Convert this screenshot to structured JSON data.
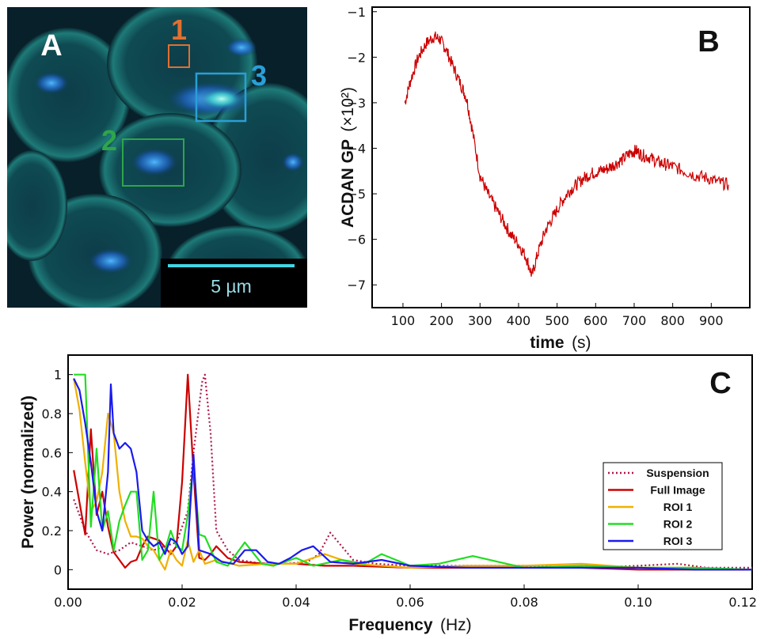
{
  "panels": {
    "A": {
      "letter": "A",
      "scale_bar_label": "5 µm",
      "roi_labels": [
        "1",
        "2",
        "3"
      ],
      "roi_colors": [
        "#e07030",
        "#2ea54a",
        "#2a9fd6"
      ]
    },
    "B": {
      "letter": "B"
    },
    "C": {
      "letter": "C"
    }
  },
  "chart_data": [
    {
      "type": "line",
      "panel": "B",
      "xlabel": "time",
      "xunit": "(s)",
      "ylabel": "ACDAN GP",
      "yunit": "(×10²)",
      "xlim": [
        20,
        1000
      ],
      "ylim": [
        -7.5,
        -0.9
      ],
      "xticks": [
        100,
        200,
        300,
        400,
        500,
        600,
        700,
        800,
        900
      ],
      "yticks": [
        -7,
        -6,
        -5,
        -4,
        -3,
        -2,
        -1
      ],
      "grid": false,
      "series": [
        {
          "color": "#cc0000",
          "x": [
            105,
            120,
            140,
            160,
            180,
            195,
            210,
            230,
            250,
            265,
            280,
            300,
            320,
            340,
            360,
            380,
            400,
            420,
            435,
            450,
            470,
            490,
            510,
            530,
            550,
            570,
            590,
            610,
            630,
            650,
            670,
            690,
            705,
            720,
            740,
            760,
            780,
            800,
            830,
            860,
            890,
            920,
            945
          ],
          "y": [
            -3.0,
            -2.5,
            -2.0,
            -1.7,
            -1.55,
            -1.6,
            -1.8,
            -2.2,
            -2.6,
            -2.9,
            -3.6,
            -4.6,
            -5.0,
            -5.3,
            -5.6,
            -5.9,
            -6.1,
            -6.4,
            -6.8,
            -6.3,
            -5.8,
            -5.5,
            -5.2,
            -4.95,
            -4.8,
            -4.65,
            -4.55,
            -4.5,
            -4.45,
            -4.35,
            -4.25,
            -4.1,
            -4.05,
            -4.15,
            -4.2,
            -4.3,
            -4.35,
            -4.4,
            -4.5,
            -4.6,
            -4.65,
            -4.75,
            -4.8
          ]
        }
      ]
    },
    {
      "type": "line",
      "panel": "C",
      "xlabel": "Frequency",
      "xunit": "(Hz)",
      "ylabel": "Power (normalized)",
      "xlim": [
        0,
        0.12
      ],
      "ylim": [
        -0.1,
        1.1
      ],
      "xticks": [
        0.0,
        0.02,
        0.04,
        0.06,
        0.08,
        0.1,
        0.12
      ],
      "xtick_labels": [
        "0.00",
        "0.02",
        "0.04",
        "0.06",
        "0.08",
        "0.10",
        "0.12"
      ],
      "yticks": [
        0,
        0.2,
        0.4,
        0.6,
        0.8,
        1
      ],
      "ytick_labels": [
        "0",
        "0.2",
        "0.4",
        "0.6",
        "0.8",
        "1"
      ],
      "legend_position": "right",
      "series": [
        {
          "name": "Suspension",
          "color": "#b0174a",
          "dash": "dotted",
          "x": [
            0.001,
            0.003,
            0.005,
            0.007,
            0.009,
            0.011,
            0.013,
            0.015,
            0.017,
            0.019,
            0.021,
            0.022,
            0.0235,
            0.024,
            0.025,
            0.026,
            0.028,
            0.03,
            0.034,
            0.038,
            0.042,
            0.044,
            0.046,
            0.048,
            0.05,
            0.054,
            0.06,
            0.07,
            0.08,
            0.09,
            0.1,
            0.107,
            0.112,
            0.12
          ],
          "y": [
            0.36,
            0.2,
            0.1,
            0.08,
            0.1,
            0.14,
            0.12,
            0.1,
            0.12,
            0.14,
            0.3,
            0.6,
            0.96,
            1.0,
            0.7,
            0.2,
            0.1,
            0.05,
            0.03,
            0.03,
            0.04,
            0.08,
            0.19,
            0.12,
            0.05,
            0.03,
            0.02,
            0.02,
            0.02,
            0.01,
            0.02,
            0.03,
            0.01,
            0.01
          ]
        },
        {
          "name": "Full Image",
          "color": "#cc0000",
          "dash": "solid",
          "x": [
            0.001,
            0.003,
            0.004,
            0.005,
            0.006,
            0.007,
            0.008,
            0.009,
            0.01,
            0.011,
            0.012,
            0.013,
            0.014,
            0.016,
            0.018,
            0.019,
            0.02,
            0.021,
            0.022,
            0.023,
            0.024,
            0.025,
            0.026,
            0.028,
            0.03,
            0.035,
            0.04,
            0.045,
            0.05,
            0.06,
            0.07,
            0.08,
            0.09,
            0.1,
            0.11,
            0.12
          ],
          "y": [
            0.51,
            0.18,
            0.72,
            0.28,
            0.4,
            0.22,
            0.09,
            0.05,
            0.01,
            0.04,
            0.05,
            0.12,
            0.17,
            0.15,
            0.08,
            0.12,
            0.45,
            1.0,
            0.5,
            0.06,
            0.05,
            0.08,
            0.12,
            0.06,
            0.04,
            0.03,
            0.03,
            0.02,
            0.02,
            0.01,
            0.01,
            0.01,
            0.01,
            0.0,
            0.0,
            0.0
          ],
          "note": ""
        },
        {
          "name": "ROI 1",
          "color": "#f0b000",
          "dash": "solid",
          "x": [
            0.001,
            0.002,
            0.003,
            0.004,
            0.005,
            0.006,
            0.007,
            0.008,
            0.009,
            0.01,
            0.011,
            0.012,
            0.013,
            0.014,
            0.015,
            0.016,
            0.017,
            0.018,
            0.019,
            0.02,
            0.021,
            0.022,
            0.023,
            0.024,
            0.026,
            0.03,
            0.035,
            0.04,
            0.045,
            0.05,
            0.06,
            0.07,
            0.08,
            0.09,
            0.1,
            0.11,
            0.12
          ],
          "y": [
            0.98,
            0.82,
            0.55,
            0.3,
            0.35,
            0.5,
            0.8,
            0.7,
            0.4,
            0.25,
            0.17,
            0.17,
            0.16,
            0.12,
            0.1,
            0.05,
            0.0,
            0.1,
            0.05,
            0.02,
            0.15,
            0.04,
            0.1,
            0.03,
            0.05,
            0.02,
            0.03,
            0.03,
            0.08,
            0.03,
            0.01,
            0.02,
            0.02,
            0.03,
            0.01,
            0.01,
            0.0
          ]
        },
        {
          "name": "ROI 2",
          "color": "#22dd22",
          "dash": "solid",
          "x": [
            0.001,
            0.003,
            0.004,
            0.005,
            0.006,
            0.007,
            0.008,
            0.009,
            0.01,
            0.011,
            0.012,
            0.013,
            0.014,
            0.015,
            0.016,
            0.017,
            0.018,
            0.019,
            0.02,
            0.021,
            0.022,
            0.023,
            0.024,
            0.026,
            0.028,
            0.031,
            0.034,
            0.036,
            0.04,
            0.043,
            0.048,
            0.052,
            0.055,
            0.06,
            0.065,
            0.071,
            0.08,
            0.09,
            0.1,
            0.11,
            0.12
          ],
          "y": [
            1.0,
            1.0,
            0.22,
            0.62,
            0.2,
            0.3,
            0.1,
            0.25,
            0.33,
            0.4,
            0.4,
            0.05,
            0.1,
            0.4,
            0.05,
            0.1,
            0.2,
            0.12,
            0.1,
            0.28,
            0.55,
            0.18,
            0.17,
            0.04,
            0.02,
            0.14,
            0.03,
            0.02,
            0.06,
            0.02,
            0.05,
            0.03,
            0.08,
            0.02,
            0.03,
            0.07,
            0.01,
            0.02,
            0.01,
            0.01,
            0.0
          ]
        },
        {
          "name": "ROI 3",
          "color": "#1a1aee",
          "dash": "solid",
          "x": [
            0.001,
            0.002,
            0.003,
            0.004,
            0.005,
            0.006,
            0.007,
            0.0075,
            0.008,
            0.009,
            0.01,
            0.011,
            0.012,
            0.013,
            0.014,
            0.015,
            0.016,
            0.017,
            0.018,
            0.019,
            0.02,
            0.021,
            0.022,
            0.023,
            0.025,
            0.027,
            0.029,
            0.031,
            0.033,
            0.035,
            0.037,
            0.039,
            0.041,
            0.043,
            0.046,
            0.05,
            0.055,
            0.06,
            0.07,
            0.08,
            0.09,
            0.1,
            0.11,
            0.12
          ],
          "y": [
            0.98,
            0.92,
            0.75,
            0.55,
            0.3,
            0.2,
            0.5,
            0.95,
            0.7,
            0.62,
            0.65,
            0.62,
            0.5,
            0.2,
            0.15,
            0.12,
            0.14,
            0.08,
            0.16,
            0.14,
            0.08,
            0.12,
            0.59,
            0.1,
            0.08,
            0.04,
            0.03,
            0.1,
            0.1,
            0.04,
            0.03,
            0.06,
            0.1,
            0.12,
            0.04,
            0.03,
            0.05,
            0.02,
            0.01,
            0.01,
            0.01,
            0.01,
            0.0,
            0.0
          ]
        }
      ]
    }
  ]
}
